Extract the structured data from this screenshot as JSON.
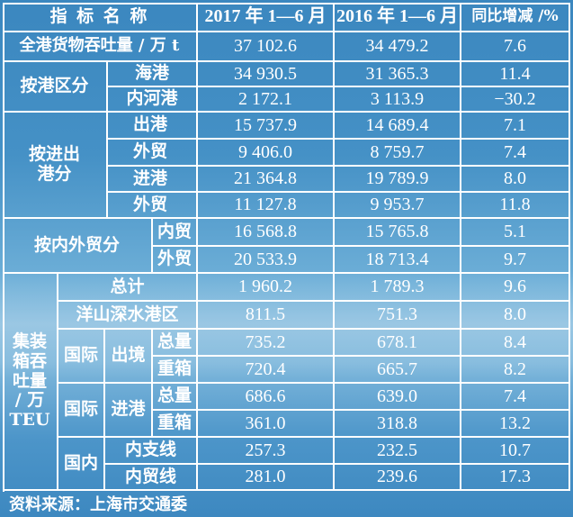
{
  "table": {
    "header": [
      "指 标 名 称",
      "2017 年 1—6 月",
      "2016 年 1—6 月",
      "同比增减 /%"
    ],
    "total_label": "全港货物吞吐量 / 万 t",
    "total": [
      "37 102.6",
      "34 479.2",
      "7.6"
    ],
    "by_port_label": "按港区分",
    "sea_label": "海港",
    "sea": [
      "34 930.5",
      "31 365.3",
      "11.4"
    ],
    "river_label": "内河港",
    "river": [
      "2 172.1",
      "3 113.9",
      "−30.2"
    ],
    "inout_label": "按进出港分",
    "out_label": "出港",
    "out": [
      "15 737.9",
      "14 689.4",
      "7.1"
    ],
    "out_foreign_label": "外贸",
    "out_foreign": [
      "9 406.0",
      "8 759.7",
      "7.4"
    ],
    "in_label": "进港",
    "in": [
      "21 364.8",
      "19 789.9",
      "8.0"
    ],
    "in_foreign_label": "外贸",
    "in_foreign": [
      "11 127.8",
      "9 953.7",
      "11.8"
    ],
    "trade_label": "按内外贸分",
    "domestic_label": "内贸",
    "domestic": [
      "16 568.8",
      "15 765.8",
      "5.1"
    ],
    "foreign_label": "外贸",
    "foreign": [
      "20 533.9",
      "18 713.4",
      "9.7"
    ],
    "teu_label": "集装箱吞吐量 / 万 TEU",
    "teu_total_label": "总计",
    "teu_total": [
      "1 960.2",
      "1 789.3",
      "9.6"
    ],
    "yangshan_label": "洋山深水港区",
    "yangshan": [
      "811.5",
      "751.3",
      "8.0"
    ],
    "intl_out_label1": "国际",
    "intl_out_label2": "出境",
    "intl_out_total_label": "总量",
    "intl_out_total": [
      "735.2",
      "678.1",
      "8.4"
    ],
    "intl_out_heavy_label": "重箱",
    "intl_out_heavy": [
      "720.4",
      "665.7",
      "8.2"
    ],
    "intl_in_label1": "国际",
    "intl_in_label2": "进港",
    "intl_in_total_label": "总量",
    "intl_in_total": [
      "686.6",
      "639.0",
      "7.4"
    ],
    "intl_in_heavy_label": "重箱",
    "intl_in_heavy": [
      "361.0",
      "318.8",
      "13.2"
    ],
    "dom_label": "国内",
    "dom_branch_label": "内支线",
    "dom_branch": [
      "257.3",
      "232.5",
      "10.7"
    ],
    "dom_trade_label": "内贸线",
    "dom_trade": [
      "281.0",
      "239.6",
      "17.3"
    ]
  },
  "source": "资料来源：上海市交通委"
}
